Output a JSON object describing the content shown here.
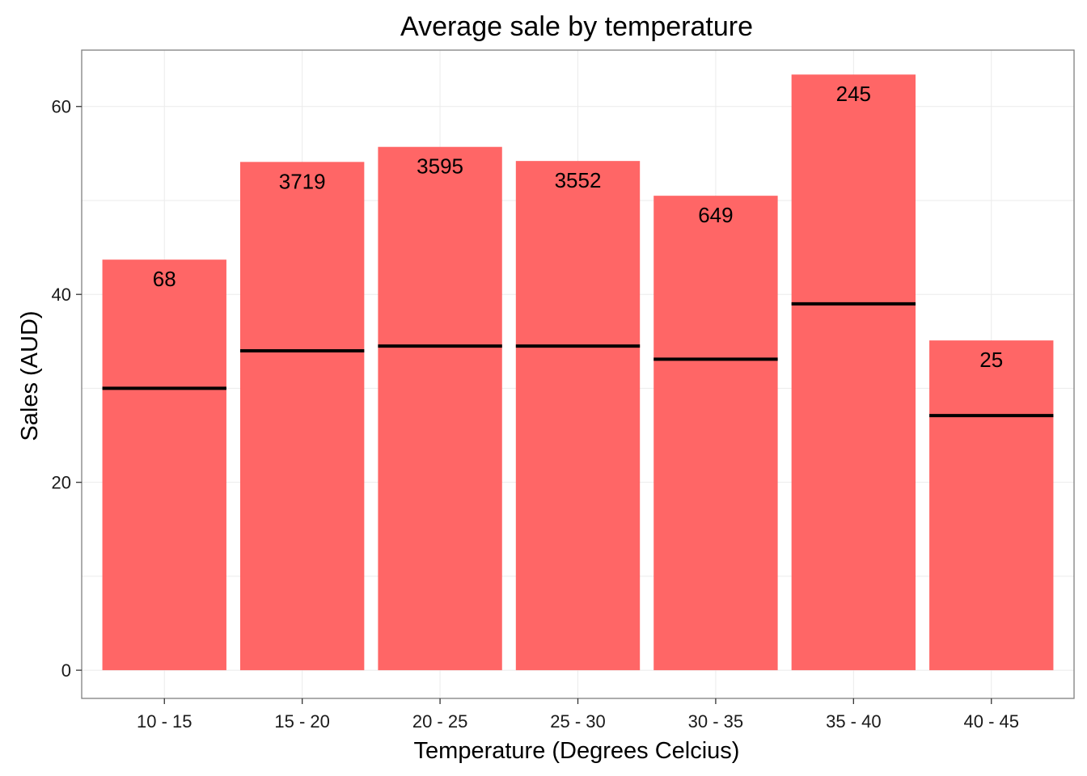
{
  "chart_data": {
    "type": "bar",
    "title": "Average sale by temperature",
    "xlabel": "Temperature (Degrees Celcius)",
    "ylabel": "Sales (AUD)",
    "categories": [
      "10 - 15",
      "15 - 20",
      "20 - 25",
      "25 - 30",
      "30 - 35",
      "35 - 40",
      "40 - 45"
    ],
    "series": [
      {
        "values": [
          43.7,
          54.1,
          55.7,
          54.2,
          50.5,
          63.4,
          35.1
        ]
      }
    ],
    "median_values": [
      30.0,
      34.0,
      34.5,
      34.5,
      33.1,
      39.0,
      27.1
    ],
    "data_labels": [
      "68",
      "3719",
      "3595",
      "3552",
      "649",
      "245",
      "25"
    ],
    "ylim": [
      -3,
      66
    ],
    "yticks": [
      0,
      20,
      40,
      60
    ],
    "grid": true,
    "legend": "none",
    "colors": {
      "bar": "#ff6666",
      "median_line": "#000000",
      "grid": "#ebebeb",
      "panel_border": "#7f7f7f"
    }
  }
}
